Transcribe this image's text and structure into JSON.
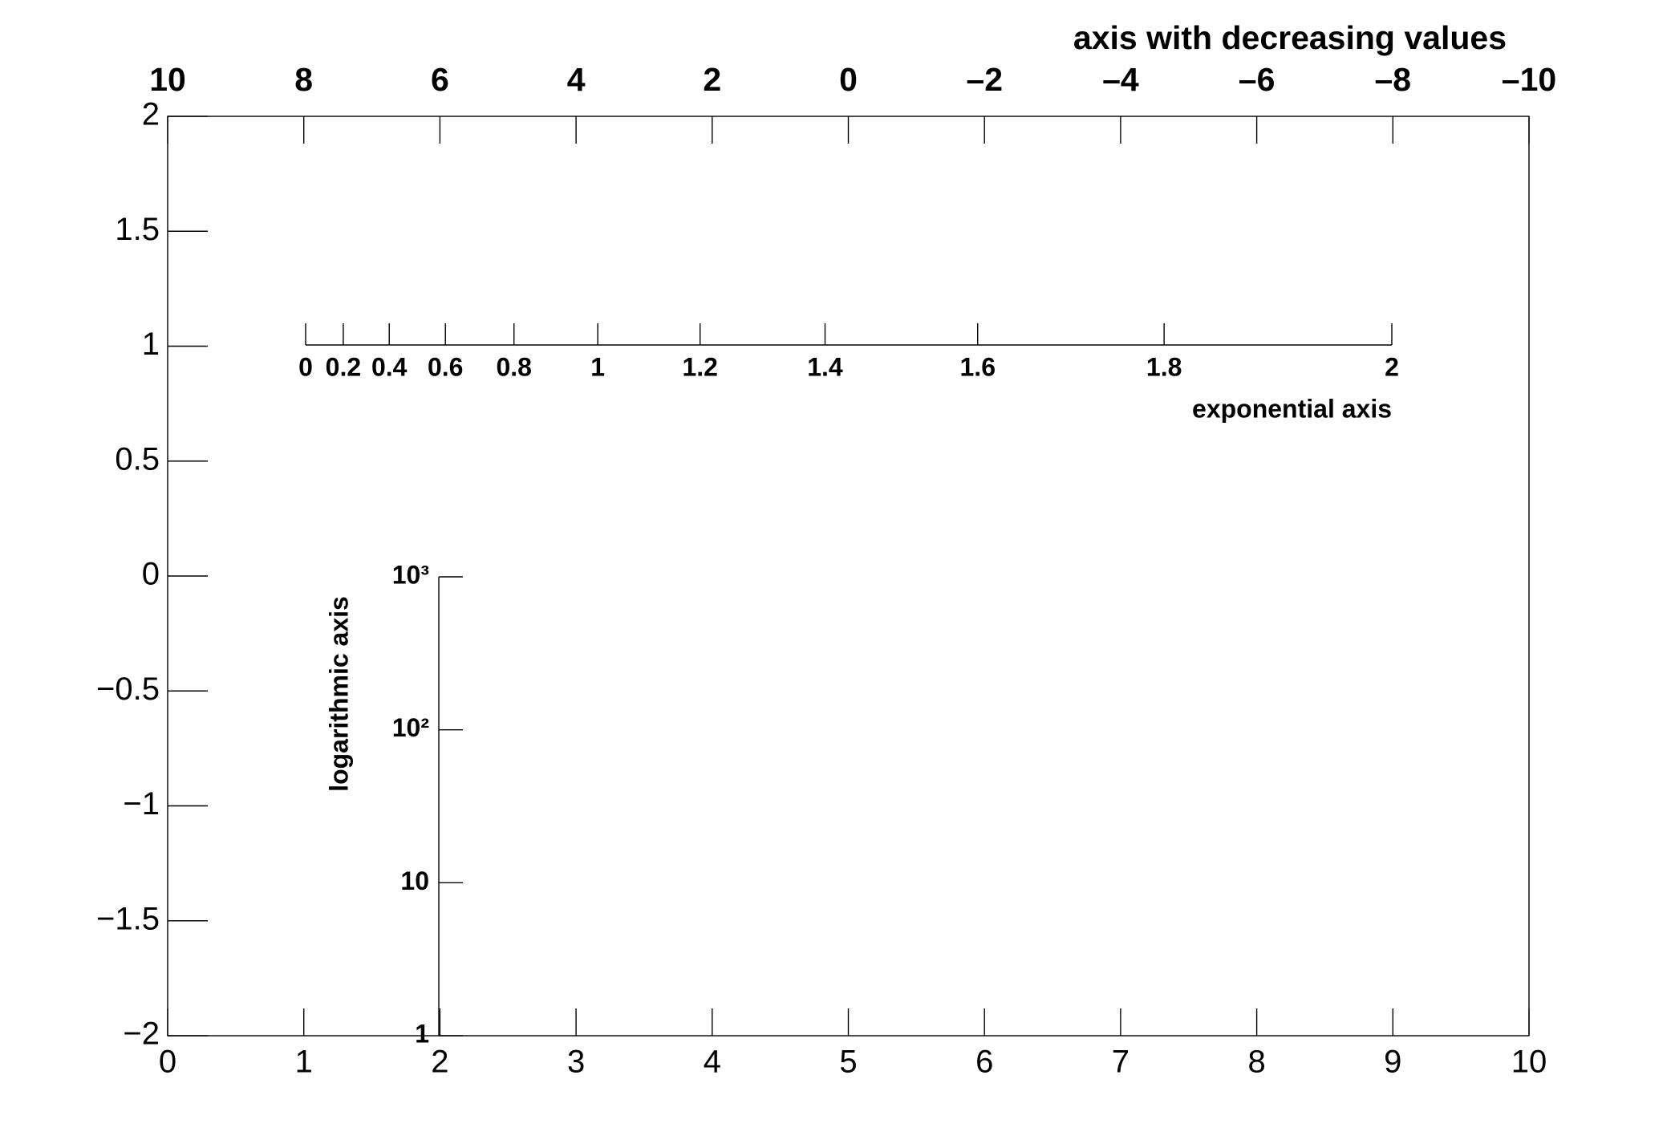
{
  "chart_data": {
    "type": "axes",
    "frame": {
      "xlim": [
        0,
        10
      ],
      "xticks": [
        0,
        1,
        2,
        3,
        4,
        5,
        6,
        7,
        8,
        9,
        10
      ],
      "ylim": [
        -2,
        2
      ],
      "yticks": [
        {
          "value": -2,
          "label": "−2"
        },
        {
          "value": -1.5,
          "label": "−1.5"
        },
        {
          "value": -1,
          "label": "−1"
        },
        {
          "value": -0.5,
          "label": "−0.5"
        },
        0,
        0.5,
        1,
        1.5,
        2
      ]
    },
    "top_axis": {
      "title": "axis with decreasing values",
      "xlim": [
        10,
        -10
      ],
      "xticks": [
        10,
        8,
        6,
        4,
        2,
        0,
        {
          "value": -2,
          "label": "–2"
        },
        {
          "value": -4,
          "label": "–4"
        },
        {
          "value": -6,
          "label": "–6"
        },
        {
          "value": -8,
          "label": "–8"
        },
        {
          "value": -10,
          "label": "–10"
        }
      ]
    },
    "exponential_axis": {
      "title": "exponential axis",
      "scale": "exp",
      "xlim": [
        0,
        2
      ],
      "xticks": [
        0,
        0.2,
        0.4,
        0.6,
        0.8,
        1,
        1.2,
        1.4,
        1.6,
        1.8,
        2
      ]
    },
    "log_axis": {
      "title": "logarithmic axis",
      "log": true,
      "ylim": [
        1,
        1000
      ],
      "yticks": [
        1,
        10,
        {
          "value": 100,
          "label": "10²"
        },
        {
          "value": 1000,
          "label": "10³"
        }
      ]
    }
  }
}
